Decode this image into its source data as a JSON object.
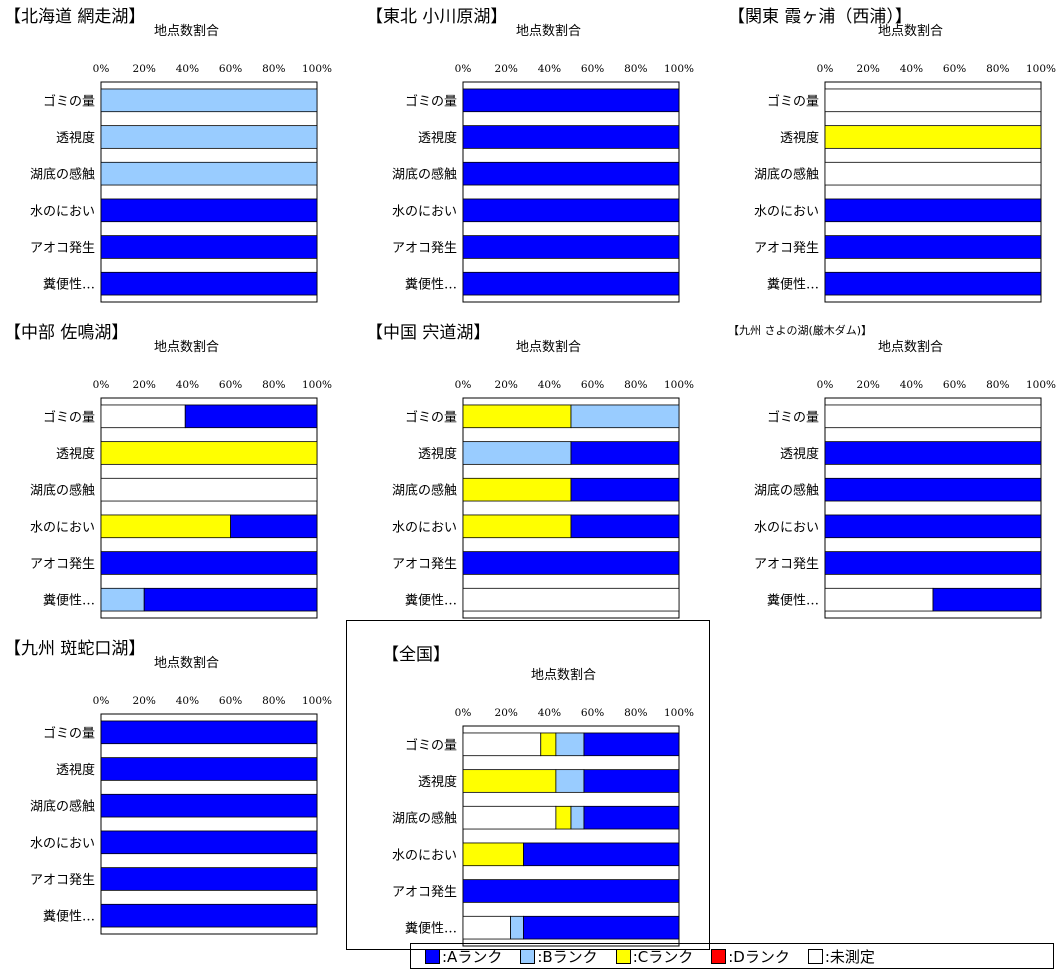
{
  "colors": {
    "A": "#0000ff",
    "B": "#99ccff",
    "C": "#ffff00",
    "D": "#ff0000",
    "N": "#ffffff"
  },
  "chart_data": [
    {
      "type": "bar",
      "orientation": "horizontal",
      "stacked": true,
      "title": "【北海道 網走湖】",
      "subtitle": "地点数割合",
      "categories": [
        "ゴミの量",
        "透視度",
        "湖底の感触",
        "水のにおい",
        "アオコ発生",
        "糞便性…"
      ],
      "xlim": [
        0,
        100
      ],
      "xticks": [
        "0%",
        "20%",
        "40%",
        "60%",
        "80%",
        "100%"
      ],
      "series": [
        {
          "name": "Aランク",
          "values": [
            0,
            0,
            0,
            100,
            100,
            100
          ]
        },
        {
          "name": "Bランク",
          "values": [
            100,
            100,
            100,
            0,
            0,
            0
          ]
        },
        {
          "name": "Cランク",
          "values": [
            0,
            0,
            0,
            0,
            0,
            0
          ]
        },
        {
          "name": "Dランク",
          "values": [
            0,
            0,
            0,
            0,
            0,
            0
          ]
        },
        {
          "name": "未測定",
          "values": [
            0,
            0,
            0,
            0,
            0,
            0
          ]
        }
      ]
    },
    {
      "type": "bar",
      "orientation": "horizontal",
      "stacked": true,
      "title": "【東北 小川原湖】",
      "subtitle": "地点数割合",
      "categories": [
        "ゴミの量",
        "透視度",
        "湖底の感触",
        "水のにおい",
        "アオコ発生",
        "糞便性…"
      ],
      "xlim": [
        0,
        100
      ],
      "xticks": [
        "0%",
        "20%",
        "40%",
        "60%",
        "80%",
        "100%"
      ],
      "series": [
        {
          "name": "Aランク",
          "values": [
            100,
            100,
            100,
            100,
            100,
            100
          ]
        },
        {
          "name": "Bランク",
          "values": [
            0,
            0,
            0,
            0,
            0,
            0
          ]
        },
        {
          "name": "Cランク",
          "values": [
            0,
            0,
            0,
            0,
            0,
            0
          ]
        },
        {
          "name": "Dランク",
          "values": [
            0,
            0,
            0,
            0,
            0,
            0
          ]
        },
        {
          "name": "未測定",
          "values": [
            0,
            0,
            0,
            0,
            0,
            0
          ]
        }
      ]
    },
    {
      "type": "bar",
      "orientation": "horizontal",
      "stacked": true,
      "title": "【関東 霞ヶ浦（西浦）】",
      "subtitle": "地点数割合",
      "categories": [
        "ゴミの量",
        "透視度",
        "湖底の感触",
        "水のにおい",
        "アオコ発生",
        "糞便性…"
      ],
      "xlim": [
        0,
        100
      ],
      "xticks": [
        "0%",
        "20%",
        "40%",
        "60%",
        "80%",
        "100%"
      ],
      "series": [
        {
          "name": "Aランク",
          "values": [
            0,
            0,
            0,
            100,
            100,
            100
          ]
        },
        {
          "name": "Bランク",
          "values": [
            0,
            0,
            0,
            0,
            0,
            0
          ]
        },
        {
          "name": "Cランク",
          "values": [
            0,
            100,
            0,
            0,
            0,
            0
          ]
        },
        {
          "name": "Dランク",
          "values": [
            0,
            0,
            0,
            0,
            0,
            0
          ]
        },
        {
          "name": "未測定",
          "values": [
            100,
            0,
            100,
            0,
            0,
            0
          ]
        }
      ]
    },
    {
      "type": "bar",
      "orientation": "horizontal",
      "stacked": true,
      "title": "【中部 佐鳴湖】",
      "subtitle": "地点数割合",
      "categories": [
        "ゴミの量",
        "透視度",
        "湖底の感触",
        "水のにおい",
        "アオコ発生",
        "糞便性…"
      ],
      "xlim": [
        0,
        100
      ],
      "xticks": [
        "0%",
        "20%",
        "40%",
        "60%",
        "80%",
        "100%"
      ],
      "series": [
        {
          "name": "Aランク",
          "values": [
            61,
            0,
            0,
            40,
            100,
            80
          ]
        },
        {
          "name": "Bランク",
          "values": [
            0,
            0,
            0,
            0,
            0,
            20
          ]
        },
        {
          "name": "Cランク",
          "values": [
            0,
            100,
            0,
            60,
            0,
            0
          ]
        },
        {
          "name": "Dランク",
          "values": [
            0,
            0,
            0,
            0,
            0,
            0
          ]
        },
        {
          "name": "未測定",
          "values": [
            39,
            0,
            100,
            0,
            0,
            0
          ]
        }
      ]
    },
    {
      "type": "bar",
      "orientation": "horizontal",
      "stacked": true,
      "title": "【中国 宍道湖】",
      "subtitle": "地点数割合",
      "categories": [
        "ゴミの量",
        "透視度",
        "湖底の感触",
        "水のにおい",
        "アオコ発生",
        "糞便性…"
      ],
      "xlim": [
        0,
        100
      ],
      "xticks": [
        "0%",
        "20%",
        "40%",
        "60%",
        "80%",
        "100%"
      ],
      "series": [
        {
          "name": "Aランク",
          "values": [
            0,
            50,
            50,
            50,
            100,
            0
          ]
        },
        {
          "name": "Bランク",
          "values": [
            50,
            50,
            0,
            0,
            0,
            0
          ]
        },
        {
          "name": "Cランク",
          "values": [
            50,
            0,
            50,
            50,
            0,
            0
          ]
        },
        {
          "name": "Dランク",
          "values": [
            0,
            0,
            0,
            0,
            0,
            0
          ]
        },
        {
          "name": "未測定",
          "values": [
            0,
            0,
            0,
            0,
            0,
            100
          ]
        }
      ]
    },
    {
      "type": "bar",
      "orientation": "horizontal",
      "stacked": true,
      "title": "【九州 さよの湖(厳木ダム)】",
      "subtitle": "地点数割合",
      "categories": [
        "ゴミの量",
        "透視度",
        "湖底の感触",
        "水のにおい",
        "アオコ発生",
        "糞便性…"
      ],
      "xlim": [
        0,
        100
      ],
      "xticks": [
        "0%",
        "20%",
        "40%",
        "60%",
        "80%",
        "100%"
      ],
      "series": [
        {
          "name": "Aランク",
          "values": [
            0,
            100,
            100,
            100,
            100,
            50
          ]
        },
        {
          "name": "Bランク",
          "values": [
            0,
            0,
            0,
            0,
            0,
            0
          ]
        },
        {
          "name": "Cランク",
          "values": [
            0,
            0,
            0,
            0,
            0,
            0
          ]
        },
        {
          "name": "Dランク",
          "values": [
            0,
            0,
            0,
            0,
            0,
            0
          ]
        },
        {
          "name": "未測定",
          "values": [
            100,
            0,
            0,
            0,
            0,
            50
          ]
        }
      ]
    },
    {
      "type": "bar",
      "orientation": "horizontal",
      "stacked": true,
      "title": "【九州 斑蛇口湖】",
      "subtitle": "地点数割合",
      "categories": [
        "ゴミの量",
        "透視度",
        "湖底の感触",
        "水のにおい",
        "アオコ発生",
        "糞便性…"
      ],
      "xlim": [
        0,
        100
      ],
      "xticks": [
        "0%",
        "20%",
        "40%",
        "60%",
        "80%",
        "100%"
      ],
      "series": [
        {
          "name": "Aランク",
          "values": [
            100,
            100,
            100,
            100,
            100,
            100
          ]
        },
        {
          "name": "Bランク",
          "values": [
            0,
            0,
            0,
            0,
            0,
            0
          ]
        },
        {
          "name": "Cランク",
          "values": [
            0,
            0,
            0,
            0,
            0,
            0
          ]
        },
        {
          "name": "Dランク",
          "values": [
            0,
            0,
            0,
            0,
            0,
            0
          ]
        },
        {
          "name": "未測定",
          "values": [
            0,
            0,
            0,
            0,
            0,
            0
          ]
        }
      ]
    },
    {
      "type": "bar",
      "orientation": "horizontal",
      "stacked": true,
      "title": "【全国】",
      "subtitle": "地点数割合",
      "categories": [
        "ゴミの量",
        "透視度",
        "湖底の感触",
        "水のにおい",
        "アオコ発生",
        "糞便性…"
      ],
      "xlim": [
        0,
        100
      ],
      "xticks": [
        "0%",
        "20%",
        "40%",
        "60%",
        "80%",
        "100%"
      ],
      "series": [
        {
          "name": "Aランク",
          "values": [
            44,
            44,
            44,
            72,
            100,
            72
          ]
        },
        {
          "name": "Bランク",
          "values": [
            13,
            13,
            6,
            0,
            0,
            6
          ]
        },
        {
          "name": "Cランク",
          "values": [
            7,
            43,
            7,
            28,
            0,
            0
          ]
        },
        {
          "name": "Dランク",
          "values": [
            0,
            0,
            0,
            0,
            0,
            0
          ]
        },
        {
          "name": "未測定",
          "values": [
            36,
            0,
            43,
            0,
            0,
            22
          ]
        }
      ]
    }
  ],
  "legend": {
    "items": [
      {
        "key": "A",
        "label": ":Aランク"
      },
      {
        "key": "B",
        "label": ":Bランク"
      },
      {
        "key": "C",
        "label": ":Cランク"
      },
      {
        "key": "D",
        "label": ":Dランク"
      },
      {
        "key": "N",
        "label": ":未測定"
      }
    ]
  }
}
